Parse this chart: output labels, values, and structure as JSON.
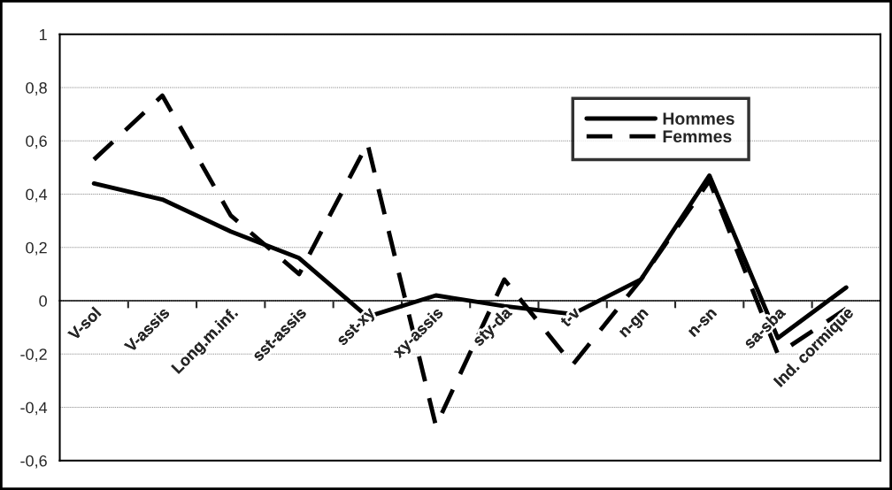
{
  "chart_data": {
    "type": "line",
    "categories": [
      "V-sol",
      "V-assis",
      "Long.m.inf.",
      "sst-assis",
      "sst-xy",
      "xy-assis",
      "sty-da",
      "t-v",
      "n-gn",
      "n-sn",
      "sa-sba",
      "Ind. cormique"
    ],
    "series": [
      {
        "name": "Hommes",
        "color": "#000000",
        "line_style": "solid",
        "values": [
          0.44,
          0.38,
          0.26,
          0.16,
          -0.06,
          0.02,
          -0.02,
          -0.05,
          0.08,
          0.47,
          -0.14,
          0.05
        ]
      },
      {
        "name": "Femmes",
        "color": "#000000",
        "line_style": "dashed",
        "values": [
          0.53,
          0.77,
          0.32,
          0.1,
          0.59,
          -0.47,
          0.08,
          -0.24,
          0.08,
          0.45,
          -0.2,
          -0.03
        ]
      }
    ],
    "ylim": [
      -0.6,
      1
    ],
    "yticks": [
      {
        "value": -0.6,
        "label": "-0,6"
      },
      {
        "value": -0.4,
        "label": "-0,4"
      },
      {
        "value": -0.2,
        "label": "-0,2"
      },
      0,
      {
        "value": 0.2,
        "label": "0,2"
      },
      {
        "value": 0.4,
        "label": "0,4"
      },
      {
        "value": 0.6,
        "label": "0,6"
      },
      {
        "value": 0.8,
        "label": "0,8"
      },
      1
    ],
    "grid": "y",
    "legend": "top right",
    "marker": "none"
  }
}
